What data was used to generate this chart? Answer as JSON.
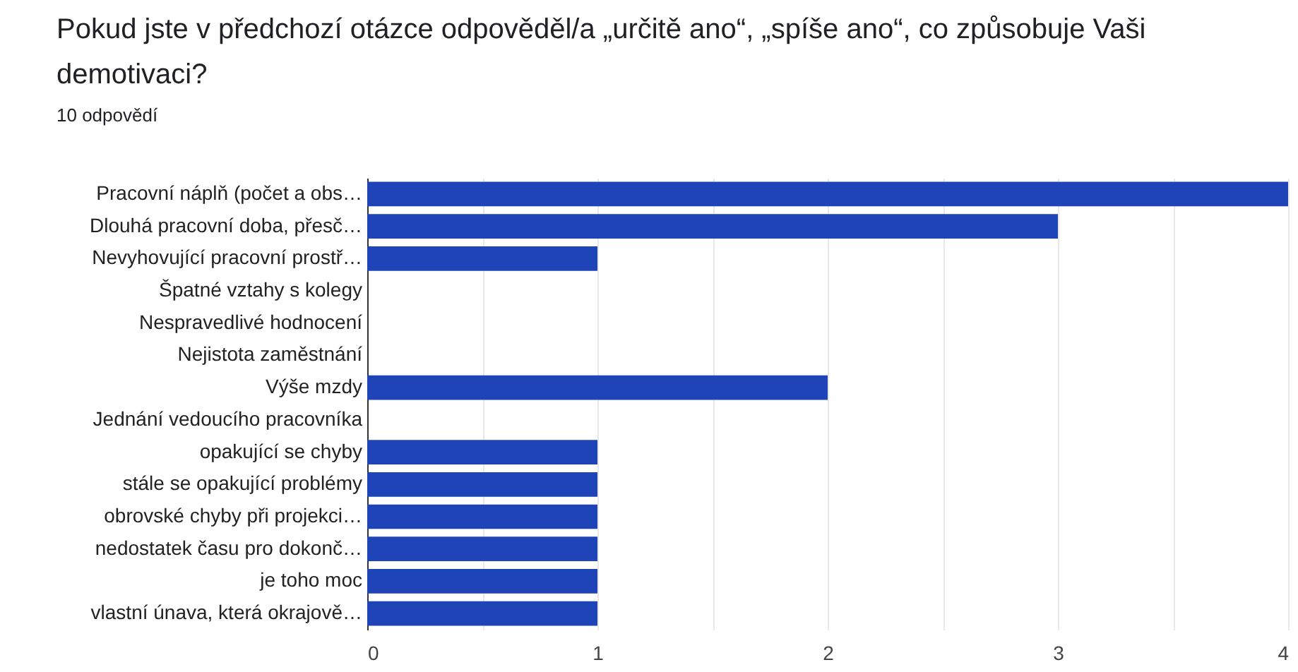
{
  "chart_data": {
    "type": "bar",
    "orientation": "horizontal",
    "title": "Pokud jste v předchozí otázce odpověděl/a „určitě ano“, „spíše ano“, co způsobuje Vaši demotivaci?",
    "subtitle": "10 odpovědí",
    "categories": [
      "Pracovní náplň (počet a obs…",
      "Dlouhá pracovní doba, přesč…",
      "Nevyhovující pracovní prostř…",
      "Špatné vztahy s kolegy",
      "Nespravedlivé hodnocení",
      "Nejistota zaměstnání",
      "Výše mzdy",
      "Jednání vedoucího pracovníka",
      "opakující se chyby",
      "stále se opakující problémy",
      "obrovské chyby při projekci…",
      "nedostatek času pro dokonč…",
      "je toho moc",
      "vlastní únava, která okrajově…"
    ],
    "values": [
      4,
      3,
      1,
      0,
      0,
      0,
      2,
      0,
      1,
      1,
      1,
      1,
      1,
      1
    ],
    "color": "#1f44b8",
    "xlim": [
      0,
      4
    ],
    "xticks": [
      0,
      {
        "value": 0.5,
        "label": null
      },
      1,
      {
        "value": 1.5,
        "label": null
      },
      2,
      {
        "value": 2.5,
        "label": null
      },
      3,
      {
        "value": 3.5,
        "label": null
      },
      4
    ],
    "grid": "x"
  }
}
